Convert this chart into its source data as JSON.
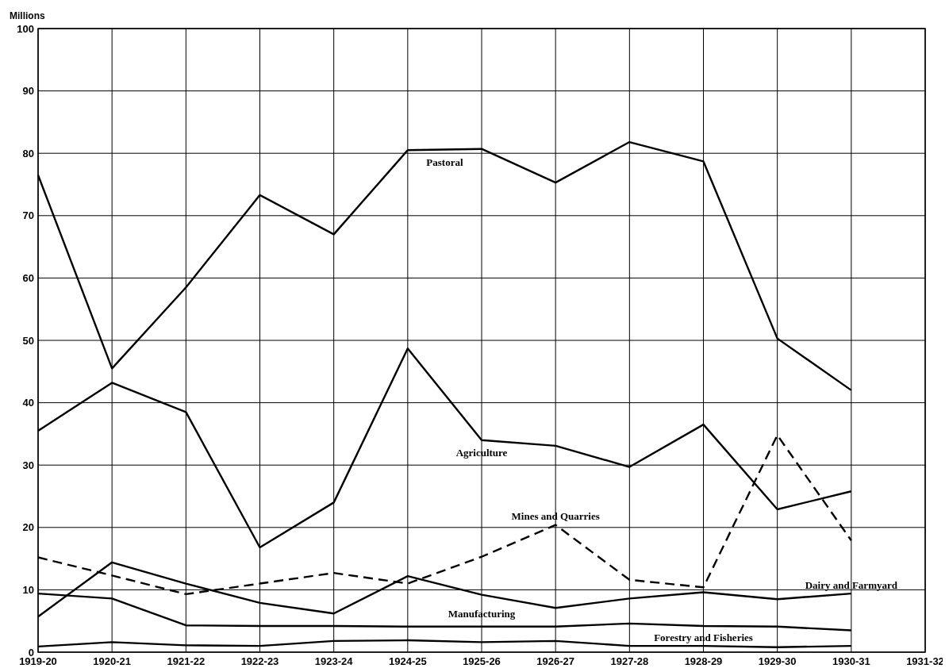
{
  "chart_data": {
    "type": "line",
    "ylabel": "Millions",
    "categories": [
      "1919-20",
      "1920-21",
      "1921-22",
      "1922-23",
      "1923-24",
      "1924-25",
      "1925-26",
      "1926-27",
      "1927-28",
      "1928-29",
      "1929-30",
      "1930-31",
      "1931-32"
    ],
    "ylim": [
      0,
      100
    ],
    "yticks": [
      0,
      10,
      20,
      30,
      40,
      50,
      60,
      70,
      80,
      90,
      100
    ],
    "grid": true,
    "series": [
      {
        "name": "Pastoral",
        "color": "#000000",
        "line_style": "solid",
        "values": [
          76.5,
          45.5,
          58.5,
          73.3,
          67,
          80.5,
          80.7,
          75.3,
          81.8,
          78.7,
          50.3,
          42,
          null
        ]
      },
      {
        "name": "Agriculture",
        "color": "#000000",
        "line_style": "solid",
        "values": [
          35.5,
          43.2,
          38.5,
          16.8,
          24,
          48.7,
          34,
          33.1,
          29.7,
          36.5,
          22.9,
          25.8,
          null
        ]
      },
      {
        "name": "Mines and Quarries",
        "color": "#000000",
        "line_style": "dashed",
        "values": [
          15.2,
          12.3,
          9.3,
          11,
          12.7,
          11,
          15.3,
          20.4,
          11.6,
          10.4,
          34.8,
          17.9,
          null
        ]
      },
      {
        "name": "Dairy and Farmyard",
        "color": "#000000",
        "line_style": "solid",
        "values": [
          5.7,
          14.4,
          11,
          7.9,
          6.2,
          12.2,
          9.2,
          7.1,
          8.6,
          9.6,
          8.5,
          9.4,
          null
        ]
      },
      {
        "name": "Manufacturing",
        "color": "#000000",
        "line_style": "solid",
        "values": [
          9.4,
          8.6,
          4.3,
          4.2,
          4.2,
          4.1,
          4.1,
          4.1,
          4.6,
          4.2,
          4.1,
          3.5,
          null
        ]
      },
      {
        "name": "Forestry and Fisheries",
        "color": "#000000",
        "line_style": "solid",
        "values": [
          0.9,
          1.6,
          1.1,
          1.0,
          1.8,
          1.9,
          1.6,
          1.8,
          1.0,
          1.0,
          0.8,
          1.0,
          null
        ]
      }
    ]
  }
}
